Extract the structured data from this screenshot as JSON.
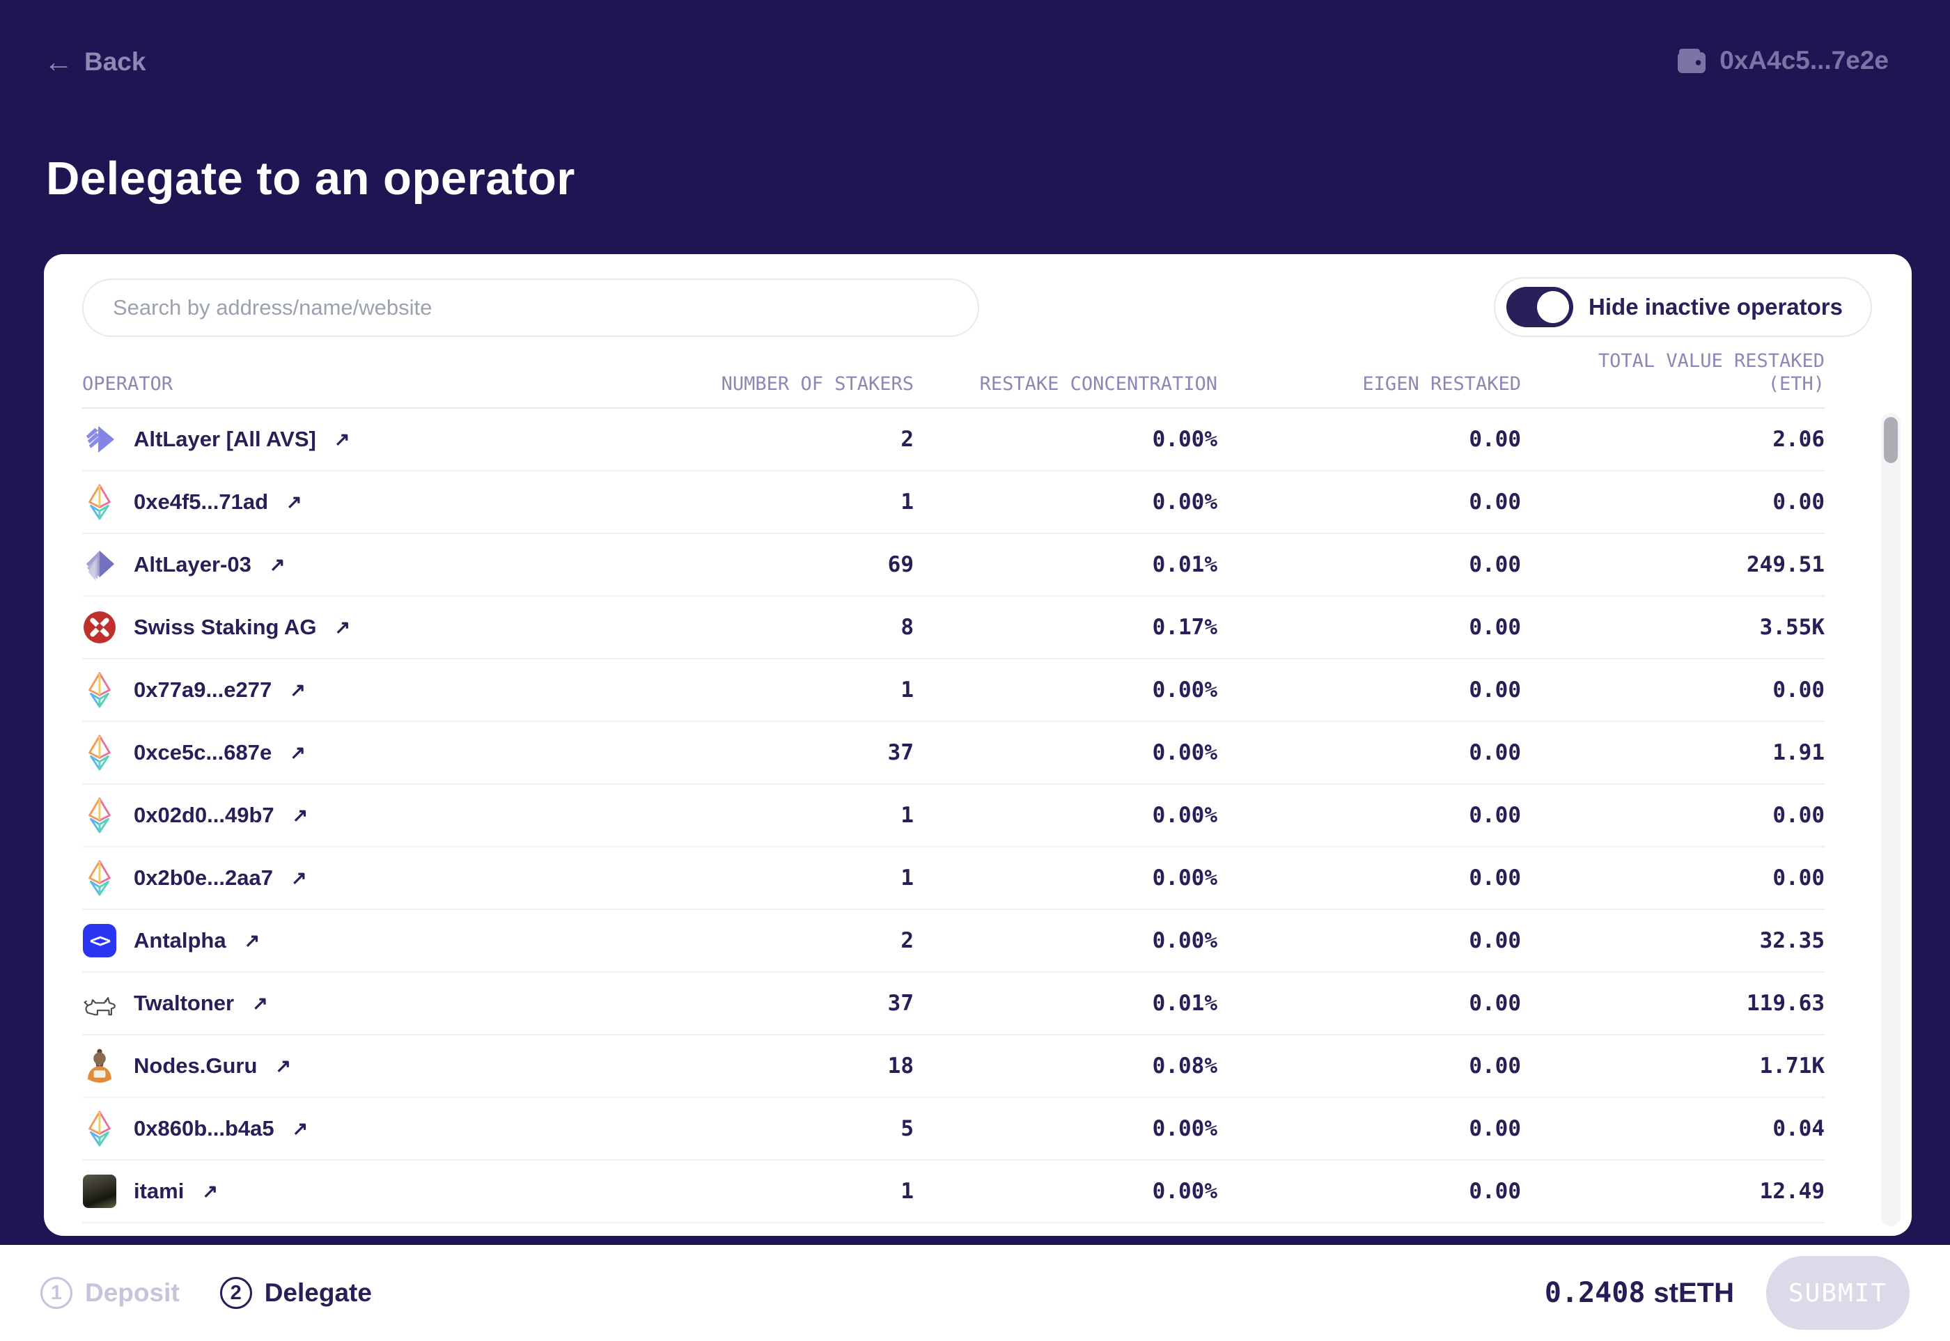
{
  "header": {
    "back_label": "Back",
    "wallet_address": "0xA4c5...7e2e"
  },
  "page_title": "Delegate to an operator",
  "search": {
    "placeholder": "Search by address/name/website"
  },
  "toggle": {
    "label": "Hide inactive operators",
    "on": true
  },
  "icons": {
    "external_link": "↗",
    "back_arrow": "←",
    "antalpha_glyph": "<>"
  },
  "table": {
    "columns": {
      "operator": "OPERATOR",
      "stakers": "NUMBER OF STAKERS",
      "concentration": "RESTAKE CONCENTRATION",
      "eigen": "EIGEN RESTAKED",
      "total_line1": "TOTAL VALUE RESTAKED",
      "total_line2": "(ETH)"
    },
    "rows": [
      {
        "name": "AltLayer [All AVS]",
        "icon": "altlayer-stripes",
        "stakers": "2",
        "concentration": "0.00%",
        "eigen": "0.00",
        "total": "2.06"
      },
      {
        "name": "0xe4f5...71ad",
        "icon": "eth-diamond",
        "stakers": "1",
        "concentration": "0.00%",
        "eigen": "0.00",
        "total": "0.00"
      },
      {
        "name": "AltLayer-03",
        "icon": "altlayer-layers",
        "stakers": "69",
        "concentration": "0.01%",
        "eigen": "0.00",
        "total": "249.51"
      },
      {
        "name": "Swiss Staking AG",
        "icon": "swiss-staking",
        "stakers": "8",
        "concentration": "0.17%",
        "eigen": "0.00",
        "total": "3.55K"
      },
      {
        "name": "0x77a9...e277",
        "icon": "eth-diamond",
        "stakers": "1",
        "concentration": "0.00%",
        "eigen": "0.00",
        "total": "0.00"
      },
      {
        "name": "0xce5c...687e",
        "icon": "eth-diamond",
        "stakers": "37",
        "concentration": "0.00%",
        "eigen": "0.00",
        "total": "1.91"
      },
      {
        "name": "0x02d0...49b7",
        "icon": "eth-diamond",
        "stakers": "1",
        "concentration": "0.00%",
        "eigen": "0.00",
        "total": "0.00"
      },
      {
        "name": "0x2b0e...2aa7",
        "icon": "eth-diamond",
        "stakers": "1",
        "concentration": "0.00%",
        "eigen": "0.00",
        "total": "0.00"
      },
      {
        "name": "Antalpha",
        "icon": "antalpha-code",
        "stakers": "2",
        "concentration": "0.00%",
        "eigen": "0.00",
        "total": "32.35"
      },
      {
        "name": "Twaltoner",
        "icon": "dog-sketch",
        "stakers": "37",
        "concentration": "0.01%",
        "eigen": "0.00",
        "total": "119.63"
      },
      {
        "name": "Nodes.Guru",
        "icon": "guru",
        "stakers": "18",
        "concentration": "0.08%",
        "eigen": "0.00",
        "total": "1.71K"
      },
      {
        "name": "0x860b...b4a5",
        "icon": "eth-diamond",
        "stakers": "5",
        "concentration": "0.00%",
        "eigen": "0.00",
        "total": "0.04"
      },
      {
        "name": "itami",
        "icon": "gorilla-photo",
        "stakers": "1",
        "concentration": "0.00%",
        "eigen": "0.00",
        "total": "12.49"
      }
    ]
  },
  "footer": {
    "steps": [
      {
        "number": "1",
        "label": "Deposit",
        "active": false
      },
      {
        "number": "2",
        "label": "Delegate",
        "active": true
      }
    ],
    "amount_value": "0.2408",
    "amount_unit": "stETH",
    "submit_label": "SUBMIT"
  },
  "colors": {
    "background": "#1e1653",
    "card": "#ffffff",
    "primary_text": "#262058",
    "muted_header": "#8d87b6",
    "inactive_step": "#c7c3dc",
    "swiss_red": "#bf2f2b",
    "antalpha_blue": "#2b36f2",
    "altlayer_purple": "#8484e8"
  }
}
